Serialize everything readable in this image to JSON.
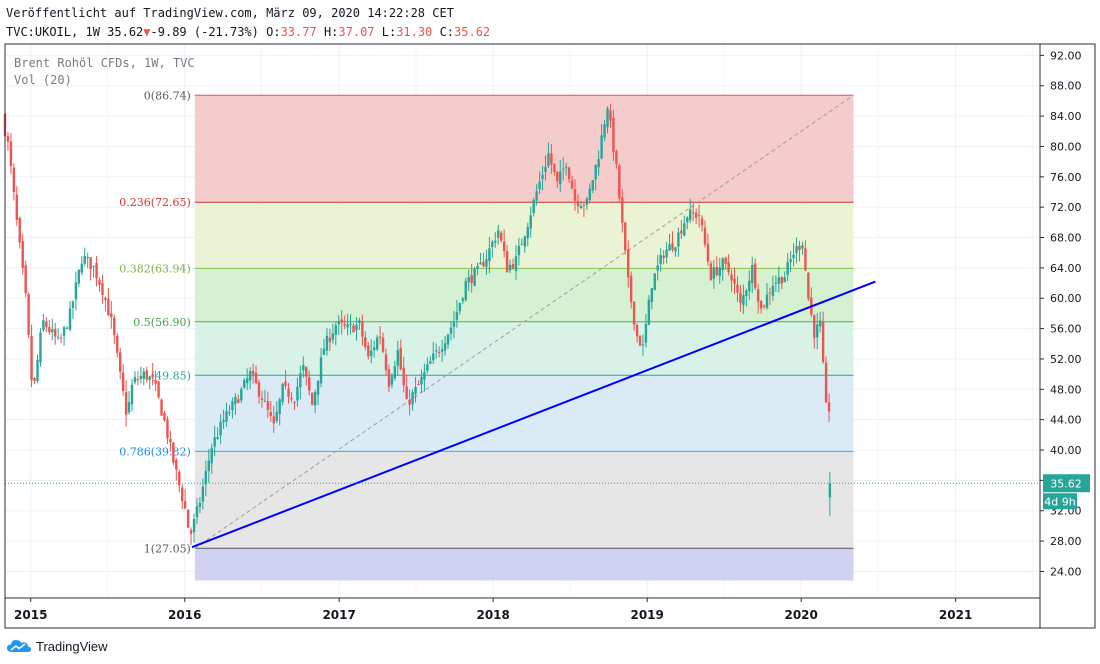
{
  "header": {
    "published": "Veröffentlicht auf TradingView.com, März 09, 2020 14:22:28 CET",
    "symbol": "TVC:UKOIL, 1W",
    "last": "35.62",
    "change": "-9.89 (-21.73%)",
    "open_label": "O:",
    "open": "33.77",
    "high_label": "H:",
    "high": "37.07",
    "low_label": "L:",
    "low": "31.30",
    "close_label": "C:",
    "close": "35.62"
  },
  "legend": {
    "series": "Brent Rohöl CFDs, 1W, TVC",
    "volume": "Vol (20)"
  },
  "price_tag": {
    "price": "35.62",
    "countdown": "4d 9h"
  },
  "branding": {
    "logo_text": "TradingView"
  },
  "colors": {
    "up": "#26a69a",
    "down": "#ef5350",
    "trendline": "#0000ff",
    "price_line": "#26a69a",
    "fib_0": "#ef5350",
    "fib_0236": "#d32f2f",
    "fib_0382": "#8bc34a",
    "fib_05": "#4caf50",
    "fib_0618": "#26a69a",
    "fib_0786": "#42a5f5"
  },
  "chart_data": {
    "type": "candlestick",
    "title": "Brent Rohöl CFDs, 1W, TVC",
    "xlabel": "",
    "ylabel": "",
    "ylim": [
      20.5,
      93.5
    ],
    "x_range": [
      "2014-11-01",
      "2021-07-20"
    ],
    "x_ticks": [
      {
        "label": "2015",
        "date": "2015-01-01"
      },
      {
        "label": "2016",
        "date": "2016-01-01"
      },
      {
        "label": "2017",
        "date": "2017-01-01"
      },
      {
        "label": "2018",
        "date": "2018-01-01"
      },
      {
        "label": "2019",
        "date": "2019-01-01"
      },
      {
        "label": "2020",
        "date": "2020-01-01"
      },
      {
        "label": "2021",
        "date": "2021-01-01"
      }
    ],
    "y_ticks": [
      24,
      28,
      32,
      36,
      40,
      44,
      48,
      52,
      56,
      60,
      64,
      68,
      72,
      76,
      80,
      84,
      88,
      92
    ],
    "y_tick_labels": [
      "24.00",
      "28.00",
      "32.00",
      "36.00",
      "40.00",
      "44.00",
      "48.00",
      "52.00",
      "56.00",
      "60.00",
      "64.00",
      "68.00",
      "72.00",
      "76.00",
      "80.00",
      "84.00",
      "88.00",
      "92.00"
    ],
    "grid": true,
    "fibonacci": {
      "start_date": "2016-01-25",
      "end_date": "2020-05-04",
      "levels": [
        {
          "ratio": "0",
          "price": 86.74,
          "label": "0(86.74)"
        },
        {
          "ratio": "0.236",
          "price": 72.65,
          "label": "0.236(72.65)"
        },
        {
          "ratio": "0.382",
          "price": 63.94,
          "label": "0.382(63.94)"
        },
        {
          "ratio": "0.5",
          "price": 56.9,
          "label": "0.5(56.90)"
        },
        {
          "ratio": "0.618",
          "price": 49.85,
          "label": "(49.85)"
        },
        {
          "ratio": "0.786",
          "price": 39.82,
          "label": "0.786(39.82)"
        },
        {
          "ratio": "1",
          "price": 27.05,
          "label": "1(27.05)"
        }
      ],
      "lower_band_bottom": 22.8
    },
    "diagonal": {
      "from_date": "2016-01-25",
      "from_price": 27.05,
      "to_date": "2020-05-04",
      "to_price": 86.74
    },
    "trendline": {
      "from_date": "2016-01-18",
      "from_price": 27.2,
      "to_date": "2020-06-25",
      "to_price": 62.2
    },
    "current_price": 35.62,
    "series_path": [
      [
        "2014-11-01",
        84.0
      ],
      [
        "2014-11-16",
        80.0
      ],
      [
        "2014-12-06",
        70.0
      ],
      [
        "2014-12-27",
        60.0
      ],
      [
        "2015-01-13",
        47.0
      ],
      [
        "2015-02-05",
        57.0
      ],
      [
        "2015-03-17",
        54.0
      ],
      [
        "2015-04-12",
        58.0
      ],
      [
        "2015-05-10",
        65.5
      ],
      [
        "2015-06-07",
        64.0
      ],
      [
        "2015-06-28",
        61.0
      ],
      [
        "2015-07-20",
        56.5
      ],
      [
        "2015-08-10",
        49.0
      ],
      [
        "2015-08-24",
        44.5
      ],
      [
        "2015-09-07",
        49.0
      ],
      [
        "2015-10-05",
        50.0
      ],
      [
        "2015-10-26",
        49.0
      ],
      [
        "2015-11-20",
        44.0
      ],
      [
        "2015-12-12",
        38.5
      ],
      [
        "2016-01-10",
        32.0
      ],
      [
        "2016-01-20",
        28.5
      ],
      [
        "2016-02-12",
        33.0
      ],
      [
        "2016-03-12",
        40.5
      ],
      [
        "2016-04-10",
        44.0
      ],
      [
        "2016-05-14",
        47.0
      ],
      [
        "2016-06-11",
        50.0
      ],
      [
        "2016-07-09",
        47.0
      ],
      [
        "2016-08-06",
        43.0
      ],
      [
        "2016-08-27",
        48.0
      ],
      [
        "2016-09-24",
        47.0
      ],
      [
        "2016-10-14",
        51.0
      ],
      [
        "2016-11-05",
        46.0
      ],
      [
        "2016-12-03",
        53.5
      ],
      [
        "2016-12-31",
        56.5
      ],
      [
        "2017-01-28",
        56.0
      ],
      [
        "2017-02-25",
        56.5
      ],
      [
        "2017-03-18",
        52.0
      ],
      [
        "2017-04-14",
        55.5
      ],
      [
        "2017-05-06",
        49.0
      ],
      [
        "2017-05-27",
        53.0
      ],
      [
        "2017-06-17",
        46.0
      ],
      [
        "2017-07-15",
        48.5
      ],
      [
        "2017-08-12",
        51.5
      ],
      [
        "2017-09-09",
        54.0
      ],
      [
        "2017-10-07",
        57.0
      ],
      [
        "2017-11-04",
        62.0
      ],
      [
        "2017-12-02",
        63.5
      ],
      [
        "2017-12-23",
        65.5
      ],
      [
        "2018-01-20",
        69.0
      ],
      [
        "2018-02-10",
        64.0
      ],
      [
        "2018-03-03",
        65.0
      ],
      [
        "2018-03-31",
        70.0
      ],
      [
        "2018-04-21",
        74.0
      ],
      [
        "2018-05-19",
        79.0
      ],
      [
        "2018-06-09",
        75.0
      ],
      [
        "2018-06-30",
        78.0
      ],
      [
        "2018-07-21",
        73.0
      ],
      [
        "2018-08-18",
        72.5
      ],
      [
        "2018-09-15",
        79.0
      ],
      [
        "2018-10-06",
        85.5
      ],
      [
        "2018-10-27",
        77.0
      ],
      [
        "2018-11-24",
        62.0
      ],
      [
        "2018-12-15",
        55.0
      ],
      [
        "2018-12-29",
        53.5
      ],
      [
        "2019-01-19",
        62.0
      ],
      [
        "2019-02-16",
        66.0
      ],
      [
        "2019-03-16",
        67.5
      ],
      [
        "2019-04-13",
        71.0
      ],
      [
        "2019-05-11",
        71.0
      ],
      [
        "2019-06-08",
        63.0
      ],
      [
        "2019-07-06",
        64.5
      ],
      [
        "2019-07-27",
        63.0
      ],
      [
        "2019-08-17",
        59.0
      ],
      [
        "2019-09-14",
        64.0
      ],
      [
        "2019-10-05",
        58.5
      ],
      [
        "2019-11-02",
        62.0
      ],
      [
        "2019-11-30",
        63.0
      ],
      [
        "2019-12-21",
        66.0
      ],
      [
        "2020-01-11",
        67.5
      ],
      [
        "2020-01-25",
        60.0
      ],
      [
        "2020-02-08",
        55.5
      ],
      [
        "2020-02-22",
        56.5
      ],
      [
        "2020-03-01",
        50.0
      ],
      [
        "2020-03-07",
        45.5
      ]
    ],
    "last_candle": {
      "date": "2020-03-09",
      "open": 33.77,
      "high": 37.07,
      "low": 31.3,
      "close": 35.62
    }
  }
}
